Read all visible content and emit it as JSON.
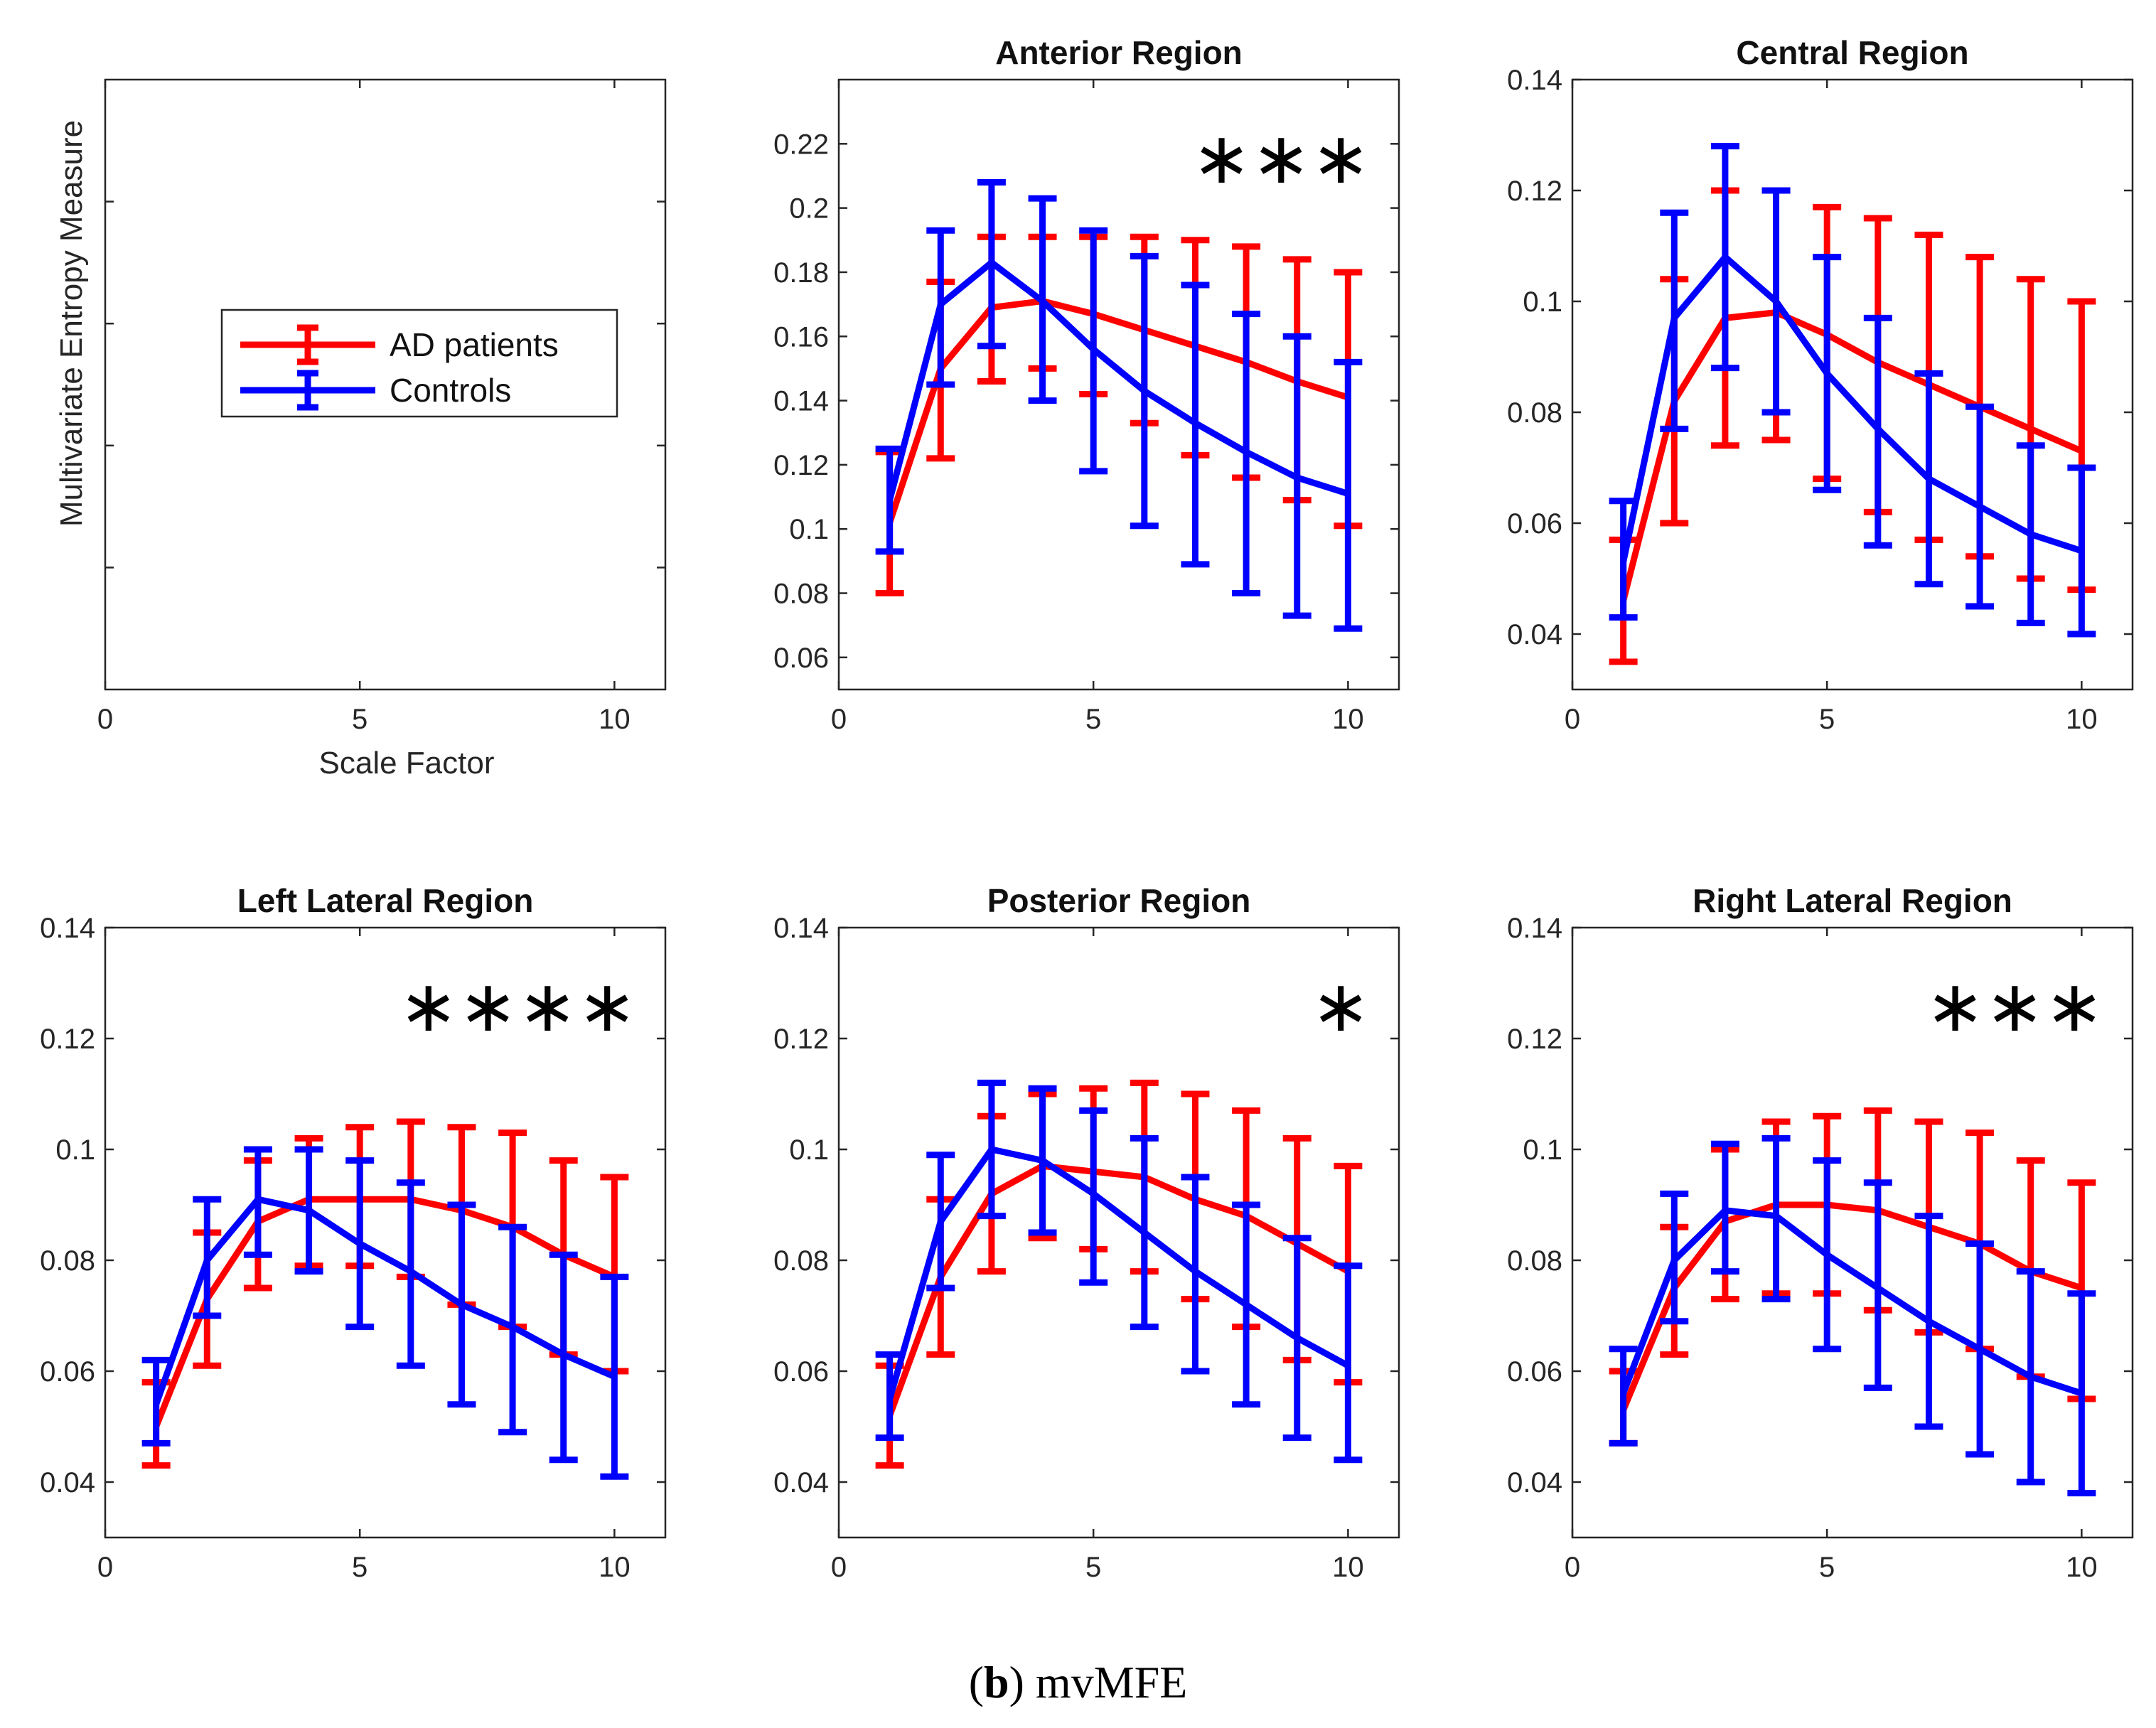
{
  "caption": {
    "label": "(b)",
    "bold_letter": "b",
    "text": "mvMFE"
  },
  "legend": {
    "entries": [
      {
        "name": "AD patients",
        "color": "#ff0000"
      },
      {
        "name": "Controls",
        "color": "#0000ff"
      }
    ]
  },
  "colors": {
    "ad": "#ff0000",
    "controls": "#0000ff"
  },
  "chart_data": [
    {
      "type": "legend-panel",
      "title": "",
      "xlabel": "Scale Factor",
      "ylabel": "Multivariate Entropy Measure",
      "xlim": [
        0,
        11
      ],
      "xticks": [
        0,
        5,
        10
      ],
      "yticks_count": 4
    },
    {
      "type": "line",
      "title": "Anterior Region",
      "significance": "∗∗∗",
      "xlim": [
        0,
        11
      ],
      "ylim": [
        0.05,
        0.24
      ],
      "xticks": [
        0,
        5,
        10
      ],
      "yticks": [
        0.06,
        0.08,
        0.1,
        0.12,
        0.14,
        0.16,
        0.18,
        0.2,
        0.22
      ],
      "ytick_labels": [
        "0.06",
        "0.08",
        "0.1",
        "0.12",
        "0.14",
        "0.16",
        "0.18",
        "0.2",
        "0.22"
      ],
      "x": [
        1,
        2,
        3,
        4,
        5,
        6,
        7,
        8,
        9,
        10
      ],
      "series": [
        {
          "name": "AD patients",
          "color": "#ff0000",
          "values": [
            0.102,
            0.15,
            0.169,
            0.171,
            0.167,
            0.162,
            0.157,
            0.152,
            0.146,
            0.141
          ],
          "lower": [
            0.08,
            0.122,
            0.146,
            0.15,
            0.142,
            0.133,
            0.123,
            0.116,
            0.109,
            0.101
          ],
          "upper": [
            0.124,
            0.177,
            0.191,
            0.191,
            0.191,
            0.191,
            0.19,
            0.188,
            0.184,
            0.18
          ]
        },
        {
          "name": "Controls",
          "color": "#0000ff",
          "values": [
            0.109,
            0.17,
            0.183,
            0.171,
            0.156,
            0.143,
            0.133,
            0.124,
            0.116,
            0.111
          ],
          "lower": [
            0.093,
            0.145,
            0.157,
            0.14,
            0.118,
            0.101,
            0.089,
            0.08,
            0.073,
            0.069
          ],
          "upper": [
            0.125,
            0.193,
            0.208,
            0.203,
            0.193,
            0.185,
            0.176,
            0.167,
            0.16,
            0.152
          ]
        }
      ]
    },
    {
      "type": "line",
      "title": "Central Region",
      "significance": "",
      "xlim": [
        0,
        11
      ],
      "ylim": [
        0.03,
        0.14
      ],
      "xticks": [
        0,
        5,
        10
      ],
      "yticks": [
        0.04,
        0.06,
        0.08,
        0.1,
        0.12,
        0.14
      ],
      "ytick_labels": [
        "0.04",
        "0.06",
        "0.08",
        "0.1",
        "0.12",
        "0.14"
      ],
      "x": [
        1,
        2,
        3,
        4,
        5,
        6,
        7,
        8,
        9,
        10
      ],
      "series": [
        {
          "name": "AD patients",
          "color": "#ff0000",
          "values": [
            0.046,
            0.082,
            0.097,
            0.098,
            0.094,
            0.089,
            0.085,
            0.081,
            0.077,
            0.073
          ],
          "lower": [
            0.035,
            0.06,
            0.074,
            0.075,
            0.068,
            0.062,
            0.057,
            0.054,
            0.05,
            0.048
          ],
          "upper": [
            0.057,
            0.104,
            0.12,
            0.12,
            0.117,
            0.115,
            0.112,
            0.108,
            0.104,
            0.1
          ]
        },
        {
          "name": "Controls",
          "color": "#0000ff",
          "values": [
            0.053,
            0.097,
            0.108,
            0.1,
            0.087,
            0.077,
            0.068,
            0.063,
            0.058,
            0.055
          ],
          "lower": [
            0.043,
            0.077,
            0.088,
            0.08,
            0.066,
            0.056,
            0.049,
            0.045,
            0.042,
            0.04
          ],
          "upper": [
            0.064,
            0.116,
            0.128,
            0.12,
            0.108,
            0.097,
            0.087,
            0.081,
            0.074,
            0.07
          ]
        }
      ]
    },
    {
      "type": "line",
      "title": "Left Lateral Region",
      "significance": "∗∗∗∗",
      "xlim": [
        0,
        11
      ],
      "ylim": [
        0.03,
        0.14
      ],
      "xticks": [
        0,
        5,
        10
      ],
      "yticks": [
        0.04,
        0.06,
        0.08,
        0.1,
        0.12,
        0.14
      ],
      "ytick_labels": [
        "0.04",
        "0.06",
        "0.08",
        "0.1",
        "0.12",
        "0.14"
      ],
      "x": [
        1,
        2,
        3,
        4,
        5,
        6,
        7,
        8,
        9,
        10
      ],
      "series": [
        {
          "name": "AD patients",
          "color": "#ff0000",
          "values": [
            0.05,
            0.073,
            0.087,
            0.091,
            0.091,
            0.091,
            0.089,
            0.086,
            0.081,
            0.077
          ],
          "lower": [
            0.043,
            0.061,
            0.075,
            0.079,
            0.079,
            0.077,
            0.072,
            0.068,
            0.063,
            0.06
          ],
          "upper": [
            0.058,
            0.085,
            0.098,
            0.102,
            0.104,
            0.105,
            0.104,
            0.103,
            0.098,
            0.095
          ]
        },
        {
          "name": "Controls",
          "color": "#0000ff",
          "values": [
            0.054,
            0.08,
            0.091,
            0.089,
            0.083,
            0.078,
            0.072,
            0.068,
            0.063,
            0.059
          ],
          "lower": [
            0.047,
            0.07,
            0.081,
            0.078,
            0.068,
            0.061,
            0.054,
            0.049,
            0.044,
            0.041
          ],
          "upper": [
            0.062,
            0.091,
            0.1,
            0.1,
            0.098,
            0.094,
            0.09,
            0.086,
            0.081,
            0.077
          ]
        }
      ]
    },
    {
      "type": "line",
      "title": "Posterior Region",
      "significance": "∗",
      "xlim": [
        0,
        11
      ],
      "ylim": [
        0.03,
        0.14
      ],
      "xticks": [
        0,
        5,
        10
      ],
      "yticks": [
        0.04,
        0.06,
        0.08,
        0.1,
        0.12,
        0.14
      ],
      "ytick_labels": [
        "0.04",
        "0.06",
        "0.08",
        "0.1",
        "0.12",
        "0.14"
      ],
      "x": [
        1,
        2,
        3,
        4,
        5,
        6,
        7,
        8,
        9,
        10
      ],
      "series": [
        {
          "name": "AD patients",
          "color": "#ff0000",
          "values": [
            0.052,
            0.077,
            0.092,
            0.097,
            0.096,
            0.095,
            0.091,
            0.088,
            0.083,
            0.078
          ],
          "lower": [
            0.043,
            0.063,
            0.078,
            0.084,
            0.082,
            0.078,
            0.073,
            0.068,
            0.062,
            0.058
          ],
          "upper": [
            0.061,
            0.091,
            0.106,
            0.11,
            0.111,
            0.112,
            0.11,
            0.107,
            0.102,
            0.097
          ]
        },
        {
          "name": "Controls",
          "color": "#0000ff",
          "values": [
            0.055,
            0.087,
            0.1,
            0.098,
            0.092,
            0.085,
            0.078,
            0.072,
            0.066,
            0.061
          ],
          "lower": [
            0.048,
            0.075,
            0.088,
            0.085,
            0.076,
            0.068,
            0.06,
            0.054,
            0.048,
            0.044
          ],
          "upper": [
            0.063,
            0.099,
            0.112,
            0.111,
            0.107,
            0.102,
            0.095,
            0.09,
            0.084,
            0.079
          ]
        }
      ]
    },
    {
      "type": "line",
      "title": "Right Lateral Region",
      "significance": "∗∗∗",
      "xlim": [
        0,
        11
      ],
      "ylim": [
        0.03,
        0.14
      ],
      "xticks": [
        0,
        5,
        10
      ],
      "yticks": [
        0.04,
        0.06,
        0.08,
        0.1,
        0.12,
        0.14
      ],
      "ytick_labels": [
        "0.04",
        "0.06",
        "0.08",
        "0.1",
        "0.12",
        "0.14"
      ],
      "x": [
        1,
        2,
        3,
        4,
        5,
        6,
        7,
        8,
        9,
        10
      ],
      "series": [
        {
          "name": "AD patients",
          "color": "#ff0000",
          "values": [
            0.053,
            0.075,
            0.087,
            0.09,
            0.09,
            0.089,
            0.086,
            0.083,
            0.078,
            0.075
          ],
          "lower": [
            0.047,
            0.063,
            0.073,
            0.074,
            0.074,
            0.071,
            0.067,
            0.064,
            0.059,
            0.055
          ],
          "upper": [
            0.06,
            0.086,
            0.1,
            0.105,
            0.106,
            0.107,
            0.105,
            0.103,
            0.098,
            0.094
          ]
        },
        {
          "name": "Controls",
          "color": "#0000ff",
          "values": [
            0.056,
            0.08,
            0.089,
            0.088,
            0.081,
            0.075,
            0.069,
            0.064,
            0.059,
            0.056
          ],
          "lower": [
            0.047,
            0.069,
            0.078,
            0.073,
            0.064,
            0.057,
            0.05,
            0.045,
            0.04,
            0.038
          ],
          "upper": [
            0.064,
            0.092,
            0.101,
            0.102,
            0.098,
            0.094,
            0.088,
            0.083,
            0.078,
            0.074
          ]
        }
      ]
    }
  ]
}
